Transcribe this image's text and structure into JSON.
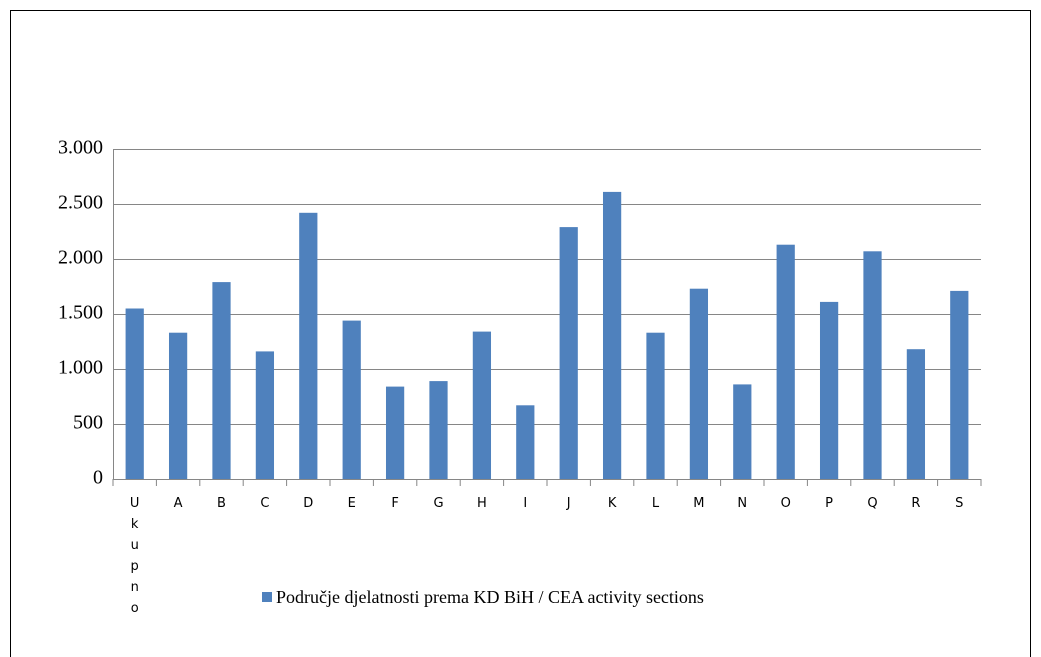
{
  "chart_data": {
    "type": "bar",
    "categories": [
      "Ukupno",
      "A",
      "B",
      "C",
      "D",
      "E",
      "F",
      "G",
      "H",
      "I",
      "J",
      "K",
      "L",
      "M",
      "N",
      "O",
      "P",
      "Q",
      "R",
      "S"
    ],
    "series": [
      {
        "name": "Područje djelatnosti prema KD BiH / CEA activity sections",
        "color": "#4f81bd",
        "values": [
          1550,
          1330,
          1790,
          1160,
          2420,
          1440,
          840,
          890,
          1340,
          670,
          2290,
          2610,
          1330,
          1730,
          860,
          2130,
          1610,
          2070,
          1180,
          1710
        ]
      }
    ],
    "ylim": [
      0,
      3000
    ],
    "yticks": [
      0,
      500,
      {
        "value": 1000,
        "label": "1.000"
      },
      {
        "value": 1500,
        "label": "1.500"
      },
      {
        "value": 2000,
        "label": "2.000"
      },
      {
        "value": 2500,
        "label": "2.500"
      },
      {
        "value": 3000,
        "label": "3.000"
      }
    ],
    "grid": true
  }
}
